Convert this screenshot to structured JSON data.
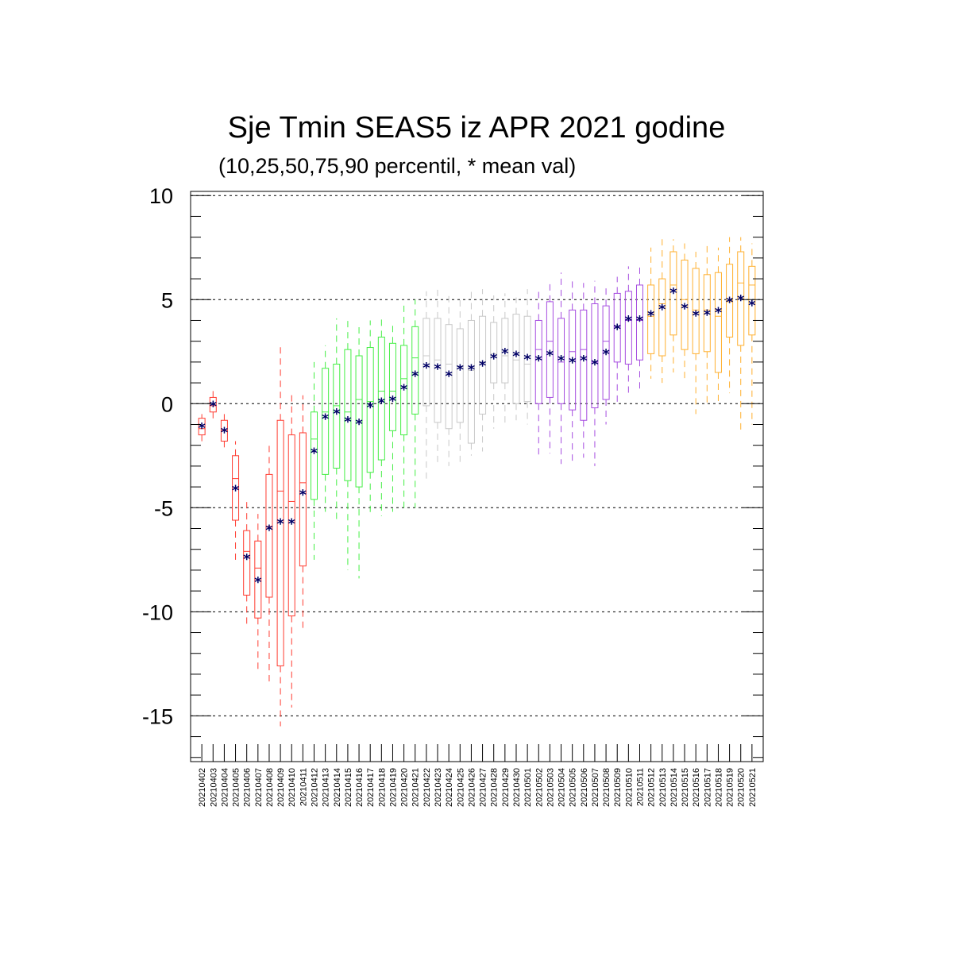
{
  "chart_data": {
    "type": "boxplot",
    "title": "Sje Tmin SEAS5 iz APR 2021 godine",
    "subtitle": "(10,25,50,75,90 percentil, * mean val)",
    "ylim": [
      -17.2,
      10.2
    ],
    "yticks": [
      10,
      5,
      0,
      -5,
      -10,
      -15
    ],
    "ytick_labels": [
      "10",
      "5",
      "0",
      "-5",
      "-10",
      "-15"
    ],
    "grid": "dashed horizontal at major ticks",
    "colors": {
      "red": "#ff3b30",
      "green": "#44ee44",
      "gray": "#c8c8c8",
      "purple": "#a64de0",
      "orange": "#ffb030",
      "mean_marker": "#000066"
    },
    "categories": [
      "20210402",
      "20210403",
      "20210404",
      "20210405",
      "20210406",
      "20210407",
      "20210408",
      "20210409",
      "20210410",
      "20210411",
      "20210412",
      "20210413",
      "20210414",
      "20210415",
      "20210416",
      "20210417",
      "20210418",
      "20210419",
      "20210420",
      "20210421",
      "20210422",
      "20210423",
      "20210424",
      "20210425",
      "20210426",
      "20210427",
      "20210428",
      "20210429",
      "20210430",
      "20210501",
      "20210502",
      "20210503",
      "20210504",
      "20210505",
      "20210506",
      "20210507",
      "20210508",
      "20210509",
      "20210510",
      "20210511",
      "20210512",
      "20210513",
      "20210514",
      "20210515",
      "20210516",
      "20210517",
      "20210518",
      "20210519",
      "20210520",
      "20210521"
    ],
    "group": [
      "red",
      "red",
      "red",
      "red",
      "red",
      "red",
      "red",
      "red",
      "red",
      "red",
      "green",
      "green",
      "green",
      "green",
      "green",
      "green",
      "green",
      "green",
      "green",
      "green",
      "gray",
      "gray",
      "gray",
      "gray",
      "gray",
      "gray",
      "gray",
      "gray",
      "gray",
      "gray",
      "purple",
      "purple",
      "purple",
      "purple",
      "purple",
      "purple",
      "purple",
      "purple",
      "purple",
      "purple",
      "orange",
      "orange",
      "orange",
      "orange",
      "orange",
      "orange",
      "orange",
      "orange",
      "orange",
      "orange"
    ],
    "p10": [
      -1.9,
      -0.8,
      -2.1,
      -7.5,
      -10.8,
      -12.8,
      -13.5,
      -15.5,
      -14.6,
      -11.0,
      -7.5,
      -5.2,
      -5.7,
      -8.0,
      -8.4,
      -5.4,
      -5.4,
      -5.2,
      -5.0,
      -5.0,
      -3.6,
      -3.0,
      -3.0,
      -2.8,
      -2.5,
      -2.3,
      -1.2,
      -1.0,
      -0.8,
      -1.0,
      -2.6,
      -2.4,
      -2.9,
      -2.8,
      -2.6,
      -3.0,
      -1.0,
      0.0,
      0.5,
      0.5,
      1.2,
      1.0,
      1.5,
      1.0,
      -0.5,
      0.0,
      0.0,
      0.5,
      -1.4,
      -1.0
    ],
    "p25": [
      -1.5,
      -0.4,
      -1.8,
      -5.6,
      -9.2,
      -10.3,
      -9.3,
      -12.6,
      -10.2,
      -7.8,
      -4.6,
      -3.4,
      -3.1,
      -3.7,
      -4.0,
      -3.3,
      -2.7,
      -1.3,
      -1.5,
      -0.5,
      -0.1,
      -0.9,
      -1.2,
      -0.9,
      -1.9,
      -0.5,
      1.0,
      1.0,
      0.0,
      0.1,
      0.0,
      0.3,
      0.0,
      -0.3,
      -0.8,
      -0.2,
      0.2,
      2.0,
      1.9,
      2.1,
      2.4,
      2.3,
      3.3,
      2.6,
      2.4,
      2.5,
      1.5,
      3.2,
      2.8,
      3.3
    ],
    "p50": [
      -1.2,
      -0.1,
      -1.3,
      -3.6,
      -7.1,
      -7.9,
      -5.9,
      -4.2,
      -4.7,
      -3.8,
      -1.7,
      -0.4,
      -0.1,
      -0.4,
      0.2,
      0.1,
      0.6,
      0.6,
      1.2,
      2.2,
      2.3,
      2.1,
      1.9,
      1.8,
      1.6,
      2.0,
      2.4,
      2.3,
      2.1,
      1.9,
      2.6,
      3.0,
      2.0,
      2.5,
      2.6,
      2.0,
      3.0,
      3.7,
      4.0,
      4.0,
      4.2,
      4.8,
      5.7,
      5.0,
      4.5,
      4.5,
      4.2,
      4.9,
      5.8,
      5.7
    ],
    "p75": [
      -0.7,
      0.3,
      -0.8,
      -2.5,
      -6.1,
      -6.6,
      -3.4,
      -0.8,
      -1.5,
      -1.4,
      -0.4,
      1.7,
      1.9,
      2.6,
      2.3,
      2.7,
      3.2,
      2.9,
      2.8,
      3.7,
      4.1,
      4.1,
      3.8,
      3.6,
      4.0,
      4.2,
      3.9,
      4.1,
      4.3,
      4.2,
      4.0,
      4.9,
      4.1,
      4.5,
      4.5,
      4.8,
      4.7,
      5.3,
      5.4,
      5.7,
      5.7,
      6.0,
      7.3,
      6.9,
      6.5,
      6.2,
      6.3,
      6.7,
      7.3,
      6.6
    ],
    "p90": [
      -0.5,
      0.7,
      -0.5,
      -1.8,
      -4.5,
      -5.3,
      -1.9,
      2.8,
      0.5,
      0.4,
      2.0,
      2.8,
      4.1,
      4.2,
      3.9,
      4.0,
      4.1,
      3.8,
      4.9,
      5.0,
      5.4,
      5.7,
      5.4,
      5.2,
      5.4,
      5.5,
      5.2,
      5.3,
      5.1,
      5.5,
      5.6,
      5.8,
      6.3,
      5.9,
      5.8,
      5.9,
      5.7,
      6.1,
      6.6,
      6.7,
      7.5,
      7.9,
      7.9,
      7.7,
      7.3,
      7.6,
      7.5,
      8.0,
      8.0,
      7.7
    ],
    "mean": [
      -1.1,
      -0.05,
      -1.3,
      -4.1,
      -7.4,
      -8.5,
      -6.0,
      -5.7,
      -5.7,
      -4.3,
      -2.3,
      -0.65,
      -0.4,
      -0.8,
      -0.9,
      -0.1,
      0.1,
      0.2,
      0.75,
      1.4,
      1.8,
      1.75,
      1.4,
      1.7,
      1.7,
      1.9,
      2.25,
      2.5,
      2.35,
      2.2,
      2.15,
      2.4,
      2.15,
      2.05,
      2.15,
      1.95,
      2.45,
      3.65,
      4.05,
      4.05,
      4.3,
      4.6,
      5.4,
      4.65,
      4.3,
      4.35,
      4.45,
      4.95,
      5.05,
      4.8
    ]
  }
}
